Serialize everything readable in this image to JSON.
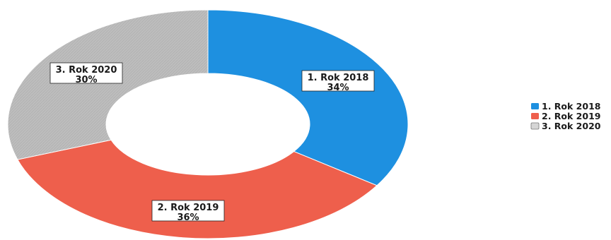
{
  "chart_data": {
    "type": "pie",
    "variant": "donut",
    "slices": [
      {
        "label": "1. Rok 2018",
        "value": 34,
        "value_label": "34%",
        "color": "#1e90e0"
      },
      {
        "label": "2. Rok 2019",
        "value": 36,
        "value_label": "36%",
        "color": "#ee5f4c"
      },
      {
        "label": "3. Rok 2020",
        "value": 30,
        "value_label": "30%",
        "color": "#b9b9b9"
      }
    ],
    "start_angle": "top",
    "direction": "clockwise",
    "legend": {
      "position": "right",
      "entries": [
        "1. Rok 2018",
        "2. Rok 2019",
        "3. Rok 2020"
      ]
    }
  }
}
